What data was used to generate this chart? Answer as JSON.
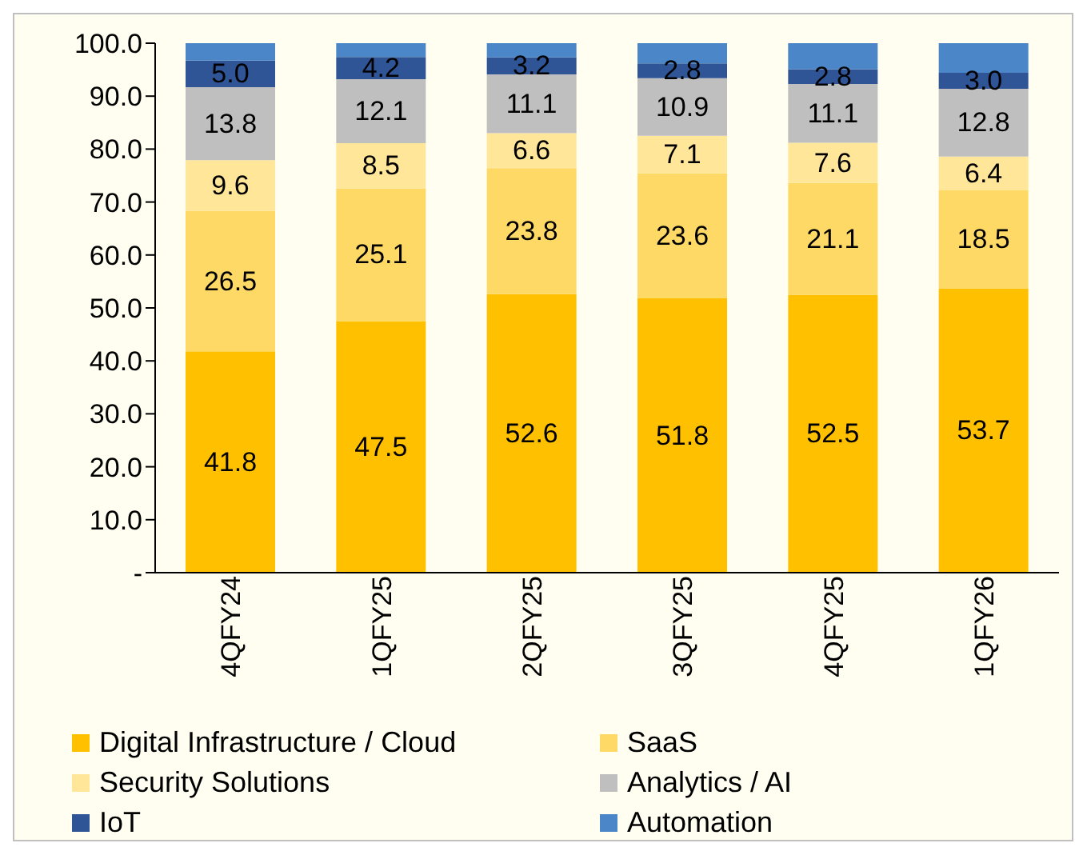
{
  "chart_data": {
    "type": "bar",
    "stacked": true,
    "categories": [
      "4QFY24",
      "1QFY25",
      "2QFY25",
      "3QFY25",
      "4QFY25",
      "1QFY26"
    ],
    "series": [
      {
        "name": "Digital Infrastructure / Cloud",
        "color": "#ffc000",
        "values": [
          41.8,
          47.5,
          52.6,
          51.8,
          52.5,
          53.7
        ],
        "value_labels": [
          "41.8",
          "47.5",
          "52.6",
          "51.8",
          "52.5",
          "53.7"
        ]
      },
      {
        "name": "SaaS",
        "color": "#ffd966",
        "values": [
          26.5,
          25.1,
          23.8,
          23.6,
          21.1,
          18.5
        ],
        "value_labels": [
          "26.5",
          "25.1",
          "23.8",
          "23.6",
          "21.1",
          "18.5"
        ]
      },
      {
        "name": "Security Solutions",
        "color": "#ffe699",
        "values": [
          9.6,
          8.5,
          6.6,
          7.1,
          7.6,
          6.4
        ],
        "value_labels": [
          "9.6",
          "8.5",
          "6.6",
          "7.1",
          "7.6",
          "6.4"
        ]
      },
      {
        "name": "Analytics / AI",
        "color": "#bfbfbf",
        "values": [
          13.8,
          12.1,
          11.1,
          10.9,
          11.1,
          12.8
        ],
        "value_labels": [
          "13.8",
          "12.1",
          "11.1",
          "10.9",
          "11.1",
          "12.8"
        ]
      },
      {
        "name": "IoT",
        "color": "#2f5597",
        "values": [
          5.0,
          4.2,
          3.2,
          2.8,
          2.8,
          3.0
        ],
        "value_labels": [
          "5.0",
          "4.2",
          "3.2",
          "2.8",
          "2.8",
          "3.0"
        ]
      },
      {
        "name": "Automation",
        "color": "#4a86c8",
        "values": [
          3.3,
          2.6,
          2.7,
          3.8,
          4.9,
          5.6
        ],
        "value_labels": [
          null,
          null,
          null,
          null,
          null,
          null
        ]
      }
    ],
    "ylim": [
      0,
      100
    ],
    "yticks": [
      {
        "value": 0,
        "label": "-"
      },
      {
        "value": 10,
        "label": "10.0"
      },
      {
        "value": 20,
        "label": "20.0"
      },
      {
        "value": 30,
        "label": "30.0"
      },
      {
        "value": 40,
        "label": "40.0"
      },
      {
        "value": 50,
        "label": "50.0"
      },
      {
        "value": 60,
        "label": "60.0"
      },
      {
        "value": 70,
        "label": "70.0"
      },
      {
        "value": 80,
        "label": "80.0"
      },
      {
        "value": 90,
        "label": "90.0"
      },
      {
        "value": 100,
        "label": "100.0"
      }
    ],
    "grid": false,
    "legend": "bottom"
  }
}
